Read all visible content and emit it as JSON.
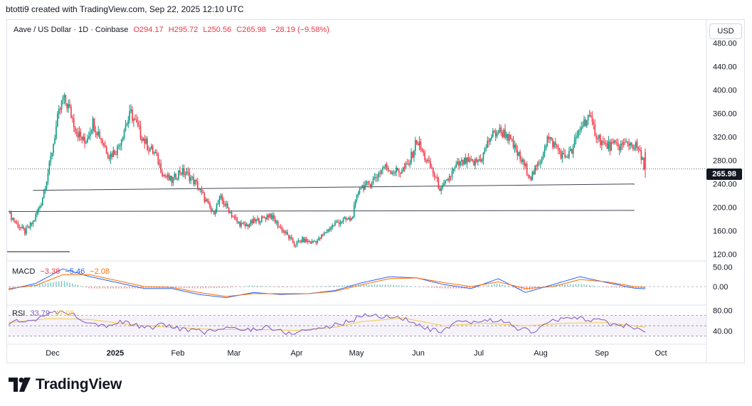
{
  "header": {
    "attribution": "btotti9 created with TradingView.com, Sep 22, 2025 12:10 UTC"
  },
  "legend": {
    "symbol": "Aave / US Dollar · 1D · Coinbase",
    "o_label": "O",
    "o": "294.17",
    "h_label": "H",
    "h": "295.72",
    "l_label": "L",
    "l": "250.56",
    "c_label": "C",
    "c": "265.98",
    "change": "−28.19 (−9.58%)"
  },
  "currency": "USD",
  "last_price": "265.98",
  "macd": {
    "label": "MACD",
    "hist": "−3.38",
    "macd": "−5.46",
    "signal": "−2.08"
  },
  "rsi": {
    "label": "RSI",
    "value": "33.79",
    "ma": "47.08"
  },
  "brand": "TradingView",
  "colors": {
    "up": "#089981",
    "down": "#f23645",
    "macd": "#2962ff",
    "signal": "#ff6d00",
    "rsi": "#7e57c2",
    "rsi_ma": "#f7c948",
    "legend_red": "#f23645"
  },
  "chart_data": [
    {
      "type": "candlestick",
      "title": "Aave / US Dollar · 1D · Coinbase",
      "x_ticks": [
        "Dec",
        "2025",
        "Feb",
        "Mar",
        "Apr",
        "May",
        "Jun",
        "Jul",
        "Aug",
        "Sep",
        "Oct"
      ],
      "y_ticks": [
        120,
        160,
        200,
        240,
        280,
        320,
        360,
        400,
        440,
        480
      ],
      "ylim": [
        110,
        505
      ],
      "grid": false,
      "close_series": [
        [
          0,
          190
        ],
        [
          6,
          172
        ],
        [
          12,
          158
        ],
        [
          18,
          175
        ],
        [
          24,
          208
        ],
        [
          30,
          270
        ],
        [
          36,
          350
        ],
        [
          40,
          385
        ],
        [
          44,
          372
        ],
        [
          50,
          330
        ],
        [
          56,
          310
        ],
        [
          62,
          345
        ],
        [
          68,
          318
        ],
        [
          74,
          288
        ],
        [
          80,
          300
        ],
        [
          86,
          340
        ],
        [
          90,
          360
        ],
        [
          96,
          330
        ],
        [
          102,
          305
        ],
        [
          108,
          290
        ],
        [
          114,
          255
        ],
        [
          120,
          245
        ],
        [
          126,
          262
        ],
        [
          132,
          255
        ],
        [
          138,
          240
        ],
        [
          144,
          215
        ],
        [
          150,
          190
        ],
        [
          156,
          215
        ],
        [
          162,
          195
        ],
        [
          168,
          175
        ],
        [
          174,
          168
        ],
        [
          180,
          176
        ],
        [
          186,
          180
        ],
        [
          192,
          188
        ],
        [
          198,
          170
        ],
        [
          204,
          155
        ],
        [
          210,
          137
        ],
        [
          216,
          145
        ],
        [
          222,
          140
        ],
        [
          228,
          145
        ],
        [
          234,
          160
        ],
        [
          240,
          173
        ],
        [
          246,
          178
        ],
        [
          252,
          180
        ],
        [
          258,
          235
        ],
        [
          264,
          238
        ],
        [
          270,
          252
        ],
        [
          276,
          270
        ],
        [
          282,
          262
        ],
        [
          288,
          262
        ],
        [
          294,
          272
        ],
        [
          300,
          315
        ],
        [
          306,
          285
        ],
        [
          312,
          260
        ],
        [
          318,
          228
        ],
        [
          324,
          252
        ],
        [
          330,
          272
        ],
        [
          336,
          278
        ],
        [
          342,
          275
        ],
        [
          348,
          285
        ],
        [
          354,
          320
        ],
        [
          360,
          330
        ],
        [
          366,
          325
        ],
        [
          372,
          300
        ],
        [
          378,
          275
        ],
        [
          384,
          252
        ],
        [
          390,
          275
        ],
        [
          396,
          318
        ],
        [
          402,
          305
        ],
        [
          408,
          285
        ],
        [
          414,
          295
        ],
        [
          420,
          335
        ],
        [
          426,
          355
        ],
        [
          432,
          325
        ],
        [
          438,
          305
        ],
        [
          444,
          305
        ],
        [
          450,
          305
        ],
        [
          456,
          310
        ],
        [
          462,
          302
        ],
        [
          468,
          266
        ]
      ],
      "last_close": 265.98,
      "horizontal_lines": [
        [
          229,
          240
        ],
        [
          193,
          195
        ]
      ]
    },
    {
      "type": "line",
      "title": "MACD",
      "y_ticks": [
        0,
        50
      ],
      "series": [
        {
          "name": "MACD",
          "values": [
            [
              0,
              -8
            ],
            [
              20,
              8
            ],
            [
              40,
              45
            ],
            [
              60,
              25
            ],
            [
              80,
              10
            ],
            [
              100,
              -5
            ],
            [
              120,
              -5
            ],
            [
              140,
              -20
            ],
            [
              160,
              -28
            ],
            [
              180,
              -15
            ],
            [
              200,
              -20
            ],
            [
              220,
              -18
            ],
            [
              240,
              -10
            ],
            [
              260,
              10
            ],
            [
              280,
              25
            ],
            [
              300,
              22
            ],
            [
              320,
              5
            ],
            [
              340,
              -5
            ],
            [
              360,
              20
            ],
            [
              380,
              -15
            ],
            [
              400,
              5
            ],
            [
              420,
              25
            ],
            [
              440,
              10
            ],
            [
              460,
              -4
            ],
            [
              468,
              -5.46
            ]
          ]
        },
        {
          "name": "Signal",
          "values": [
            [
              0,
              -5
            ],
            [
              20,
              3
            ],
            [
              40,
              30
            ],
            [
              60,
              30
            ],
            [
              80,
              15
            ],
            [
              100,
              0
            ],
            [
              120,
              -2
            ],
            [
              140,
              -15
            ],
            [
              160,
              -25
            ],
            [
              180,
              -18
            ],
            [
              200,
              -18
            ],
            [
              220,
              -18
            ],
            [
              240,
              -12
            ],
            [
              260,
              5
            ],
            [
              280,
              20
            ],
            [
              300,
              22
            ],
            [
              320,
              10
            ],
            [
              340,
              0
            ],
            [
              360,
              12
            ],
            [
              380,
              -5
            ],
            [
              400,
              0
            ],
            [
              420,
              18
            ],
            [
              440,
              12
            ],
            [
              460,
              0
            ],
            [
              468,
              -2.08
            ]
          ]
        }
      ]
    },
    {
      "type": "line",
      "title": "RSI",
      "y_ticks": [
        40,
        80
      ],
      "series": [
        {
          "name": "RSI",
          "values": [
            [
              0,
              55
            ],
            [
              15,
              60
            ],
            [
              30,
              72
            ],
            [
              42,
              78
            ],
            [
              55,
              62
            ],
            [
              70,
              50
            ],
            [
              85,
              58
            ],
            [
              100,
              45
            ],
            [
              115,
              52
            ],
            [
              130,
              42
            ],
            [
              145,
              38
            ],
            [
              160,
              45
            ],
            [
              175,
              42
            ],
            [
              190,
              48
            ],
            [
              205,
              35
            ],
            [
              220,
              42
            ],
            [
              235,
              48
            ],
            [
              250,
              58
            ],
            [
              262,
              72
            ],
            [
              275,
              68
            ],
            [
              290,
              65
            ],
            [
              305,
              45
            ],
            [
              318,
              38
            ],
            [
              330,
              55
            ],
            [
              345,
              58
            ],
            [
              360,
              62
            ],
            [
              375,
              45
            ],
            [
              385,
              38
            ],
            [
              400,
              60
            ],
            [
              415,
              65
            ],
            [
              430,
              62
            ],
            [
              445,
              52
            ],
            [
              460,
              48
            ],
            [
              468,
              33.79
            ]
          ]
        },
        {
          "name": "RSI MA",
          "values": [
            [
              0,
              56
            ],
            [
              30,
              64
            ],
            [
              60,
              62
            ],
            [
              90,
              52
            ],
            [
              120,
              47
            ],
            [
              150,
              43
            ],
            [
              180,
              43
            ],
            [
              210,
              41
            ],
            [
              240,
              47
            ],
            [
              260,
              58
            ],
            [
              290,
              65
            ],
            [
              320,
              50
            ],
            [
              350,
              55
            ],
            [
              380,
              50
            ],
            [
              410,
              55
            ],
            [
              440,
              56
            ],
            [
              468,
              47.08
            ]
          ]
        }
      ]
    }
  ]
}
